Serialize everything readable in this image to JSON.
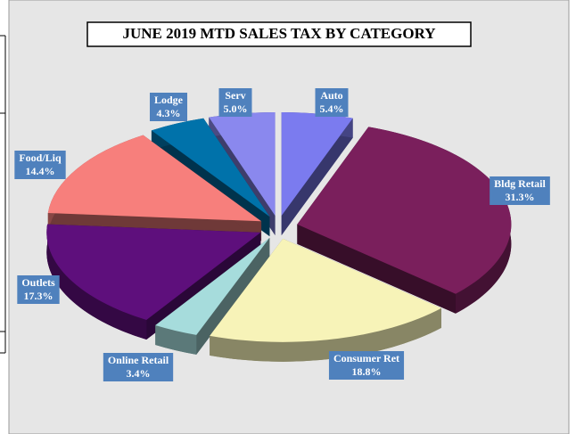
{
  "chart_data": {
    "type": "pie3d",
    "title": "JUNE 2019 MTD SALES TAX BY CATEGORY",
    "categories": [
      "Auto",
      "Bldg Retail",
      "Consumer Ret",
      "Online Retail",
      "Outlets",
      "Food/Liq",
      "Lodge",
      "Serv"
    ],
    "values": [
      5.4,
      31.3,
      18.8,
      3.4,
      17.3,
      14.4,
      4.3,
      5.0
    ],
    "value_labels": [
      "5.4%",
      "31.3%",
      "18.8%",
      "3.4%",
      "17.3%",
      "14.4%",
      "4.3%",
      "5.0%"
    ],
    "colors": [
      "#7b7bef",
      "#7a1f5c",
      "#f7f3b8",
      "#a6dcdc",
      "#5e0f7c",
      "#f77f7c",
      "#0072aa",
      "#8a88ee"
    ],
    "label_color": "#4f81bd"
  }
}
